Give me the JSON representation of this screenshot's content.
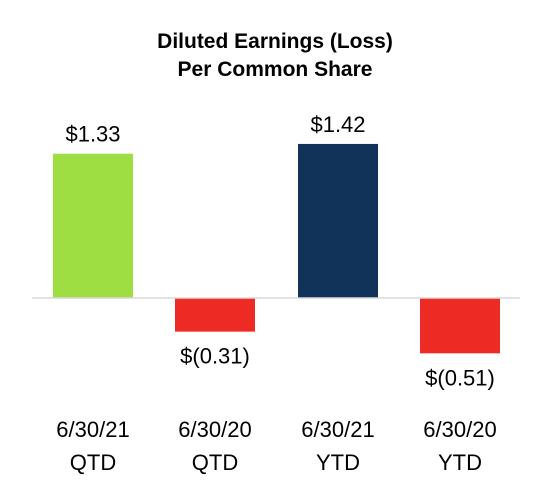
{
  "chart_data": {
    "type": "bar",
    "title_lines": [
      "Diluted Earnings (Loss)",
      "Per Common Share"
    ],
    "categories": [
      [
        "6/30/21",
        "QTD"
      ],
      [
        "6/30/20",
        "QTD"
      ],
      [
        "6/30/21",
        "YTD"
      ],
      [
        "6/30/20",
        "YTD"
      ]
    ],
    "values": [
      1.33,
      -0.31,
      1.42,
      -0.51
    ],
    "data_labels": [
      "$1.33",
      "$(0.31)",
      "$1.42",
      "$(0.51)"
    ],
    "colors": [
      "#9ede43",
      "#ee2a24",
      "#11335a",
      "#ee2a24"
    ],
    "axis_color": "#d9d9d9",
    "xlabel": "",
    "ylabel": "",
    "ylim": [
      -0.6,
      1.5
    ],
    "grid": false,
    "legend": "none"
  }
}
